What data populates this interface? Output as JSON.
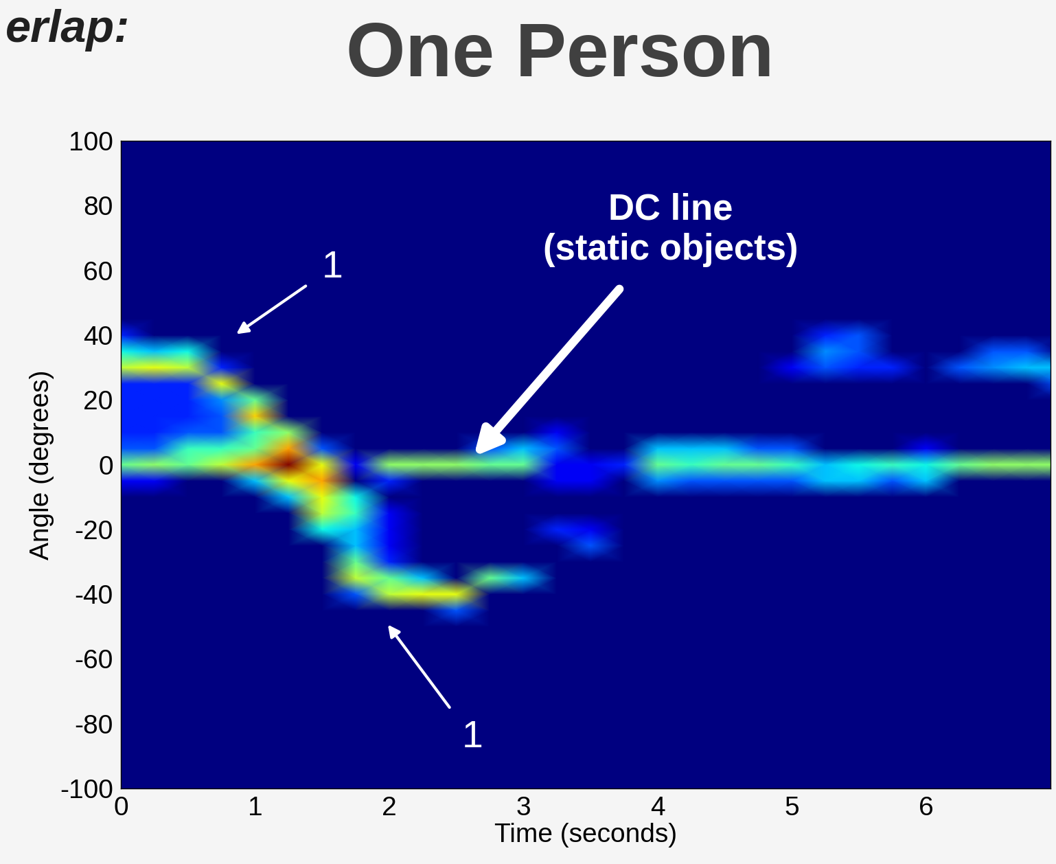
{
  "chart_data": {
    "type": "heatmap",
    "title": "One Person",
    "subtitle": "erlap:",
    "x_label": "Time (seconds)",
    "y_label": "Angle (degrees)",
    "color": "jet",
    "grid": false,
    "xlim": [
      0,
      6.93
    ],
    "ylim": [
      -100,
      100
    ],
    "xticks": [
      0,
      1,
      2,
      3,
      4,
      5,
      6
    ],
    "yticks": [
      -100,
      -80,
      -60,
      -40,
      -20,
      0,
      20,
      40,
      60,
      80,
      100
    ],
    "x": [
      0,
      0.25,
      0.5,
      0.75,
      1.0,
      1.25,
      1.5,
      1.75,
      2.0,
      2.25,
      2.5,
      2.75,
      3.0,
      3.25,
      3.5,
      3.75,
      4.0,
      4.25,
      4.5,
      4.75,
      5.0,
      5.25,
      5.5,
      5.75,
      6.0,
      6.25,
      6.5,
      6.75,
      7.0
    ],
    "y": [
      -50,
      -45,
      -40,
      -35,
      -30,
      -25,
      -20,
      -15,
      -10,
      -5,
      0,
      5,
      10,
      15,
      20,
      25,
      30,
      35,
      40,
      45
    ],
    "cells": [
      [
        0,
        0,
        0,
        0,
        0,
        0,
        0,
        0,
        0,
        0,
        0,
        0,
        0,
        0,
        0,
        0,
        0,
        0,
        0,
        0,
        0,
        0,
        0,
        0,
        0,
        0,
        0,
        0,
        0
      ],
      [
        0,
        0,
        0,
        0,
        0,
        0,
        0,
        0,
        0,
        0,
        0.2,
        0,
        0,
        0,
        0,
        0,
        0,
        0,
        0,
        0,
        0,
        0,
        0,
        0,
        0,
        0,
        0,
        0,
        0
      ],
      [
        0,
        0,
        0,
        0,
        0,
        0,
        0,
        0.2,
        0.55,
        0.6,
        0.6,
        0,
        0,
        0,
        0,
        0,
        0,
        0,
        0,
        0,
        0,
        0,
        0,
        0,
        0,
        0,
        0,
        0,
        0
      ],
      [
        0,
        0,
        0,
        0,
        0,
        0,
        0,
        0.55,
        0.45,
        0.3,
        0,
        0.45,
        0.3,
        0,
        0,
        0,
        0,
        0,
        0,
        0,
        0,
        0,
        0,
        0,
        0,
        0,
        0,
        0,
        0
      ],
      [
        0,
        0,
        0,
        0,
        0,
        0,
        0,
        0.45,
        0.15,
        0,
        0,
        0,
        0,
        0,
        0,
        0,
        0,
        0,
        0,
        0,
        0,
        0,
        0,
        0,
        0,
        0,
        0,
        0,
        0
      ],
      [
        0,
        0,
        0,
        0,
        0,
        0,
        0,
        0.3,
        0.1,
        0,
        0,
        0,
        0,
        0,
        0.2,
        0,
        0,
        0,
        0,
        0,
        0,
        0,
        0,
        0,
        0,
        0,
        0,
        0,
        0
      ],
      [
        0,
        0,
        0,
        0,
        0,
        0,
        0.35,
        0.3,
        0.1,
        0,
        0,
        0,
        0,
        0.15,
        0.1,
        0,
        0,
        0,
        0,
        0,
        0,
        0,
        0,
        0,
        0,
        0,
        0,
        0,
        0
      ],
      [
        0,
        0,
        0,
        0,
        0,
        0,
        0.55,
        0.4,
        0.1,
        0,
        0,
        0,
        0,
        0,
        0,
        0,
        0,
        0,
        0,
        0,
        0,
        0,
        0,
        0,
        0,
        0,
        0,
        0,
        0
      ],
      [
        0,
        0,
        0,
        0,
        0,
        0.3,
        0.6,
        0.35,
        0,
        0,
        0,
        0,
        0,
        0,
        0,
        0,
        0,
        0,
        0,
        0,
        0,
        0,
        0,
        0,
        0,
        0,
        0,
        0,
        0
      ],
      [
        0.1,
        0.1,
        0,
        0,
        0.3,
        0.6,
        0.7,
        0,
        0.15,
        0,
        0,
        0,
        0,
        0.1,
        0.1,
        0,
        0.25,
        0.2,
        0.2,
        0.2,
        0.2,
        0.3,
        0.3,
        0.2,
        0.3,
        0,
        0,
        0,
        0
      ],
      [
        0.45,
        0.5,
        0.45,
        0.55,
        0.7,
        0.95,
        0.6,
        0.1,
        0.5,
        0.5,
        0.5,
        0.45,
        0.45,
        0.1,
        0.1,
        0.15,
        0.45,
        0.4,
        0.45,
        0.45,
        0.4,
        0.3,
        0.35,
        0.4,
        0.35,
        0.45,
        0.5,
        0.5,
        0.5
      ],
      [
        0.2,
        0.2,
        0.4,
        0.4,
        0.45,
        0.7,
        0.2,
        0,
        0,
        0,
        0,
        0.2,
        0.3,
        0.2,
        0,
        0,
        0.3,
        0.3,
        0.3,
        0.2,
        0.2,
        0,
        0,
        0,
        0.1,
        0,
        0,
        0,
        0
      ],
      [
        0.15,
        0.15,
        0.2,
        0.2,
        0.4,
        0.5,
        0,
        0,
        0,
        0,
        0,
        0,
        0,
        0.1,
        0,
        0,
        0,
        0,
        0,
        0,
        0,
        0,
        0,
        0,
        0,
        0,
        0,
        0,
        0
      ],
      [
        0.15,
        0.15,
        0.15,
        0.2,
        0.65,
        0,
        0,
        0,
        0,
        0,
        0,
        0,
        0,
        0,
        0,
        0,
        0,
        0,
        0,
        0,
        0,
        0,
        0,
        0,
        0,
        0,
        0,
        0,
        0
      ],
      [
        0.15,
        0.15,
        0.15,
        0.25,
        0.45,
        0,
        0,
        0,
        0,
        0,
        0,
        0,
        0,
        0,
        0,
        0,
        0,
        0,
        0,
        0,
        0,
        0,
        0,
        0,
        0,
        0,
        0,
        0,
        0
      ],
      [
        0.15,
        0.15,
        0.15,
        0.6,
        0,
        0,
        0,
        0,
        0,
        0,
        0,
        0,
        0,
        0,
        0,
        0,
        0,
        0,
        0,
        0,
        0,
        0,
        0,
        0,
        0,
        0,
        0,
        0,
        0.2
      ],
      [
        0.55,
        0.6,
        0.55,
        0.15,
        0,
        0,
        0,
        0,
        0,
        0,
        0,
        0,
        0,
        0,
        0,
        0,
        0,
        0,
        0,
        0,
        0.1,
        0.2,
        0.15,
        0.15,
        0,
        0.2,
        0.25,
        0.3,
        0.3
      ],
      [
        0.35,
        0.3,
        0.35,
        0,
        0,
        0,
        0,
        0,
        0,
        0,
        0,
        0,
        0,
        0,
        0,
        0,
        0,
        0,
        0,
        0,
        0,
        0.25,
        0.2,
        0,
        0,
        0,
        0.2,
        0.2,
        0
      ],
      [
        0.15,
        0,
        0,
        0,
        0,
        0,
        0,
        0,
        0,
        0,
        0,
        0,
        0,
        0,
        0,
        0,
        0,
        0,
        0,
        0,
        0,
        0.15,
        0.2,
        0,
        0,
        0,
        0,
        0,
        0
      ],
      [
        0,
        0,
        0,
        0,
        0,
        0,
        0,
        0,
        0,
        0,
        0,
        0,
        0,
        0,
        0,
        0,
        0,
        0,
        0,
        0,
        0,
        0,
        0,
        0,
        0,
        0,
        0,
        0,
        0
      ]
    ],
    "annotations": [
      {
        "text": "1",
        "x": 0.86,
        "y": 40.3
      },
      {
        "text": "1",
        "x": 1.99,
        "y": -49.4
      },
      {
        "text": "DC line\n(static objects)",
        "x": 2.63,
        "y": 2.5
      }
    ]
  }
}
